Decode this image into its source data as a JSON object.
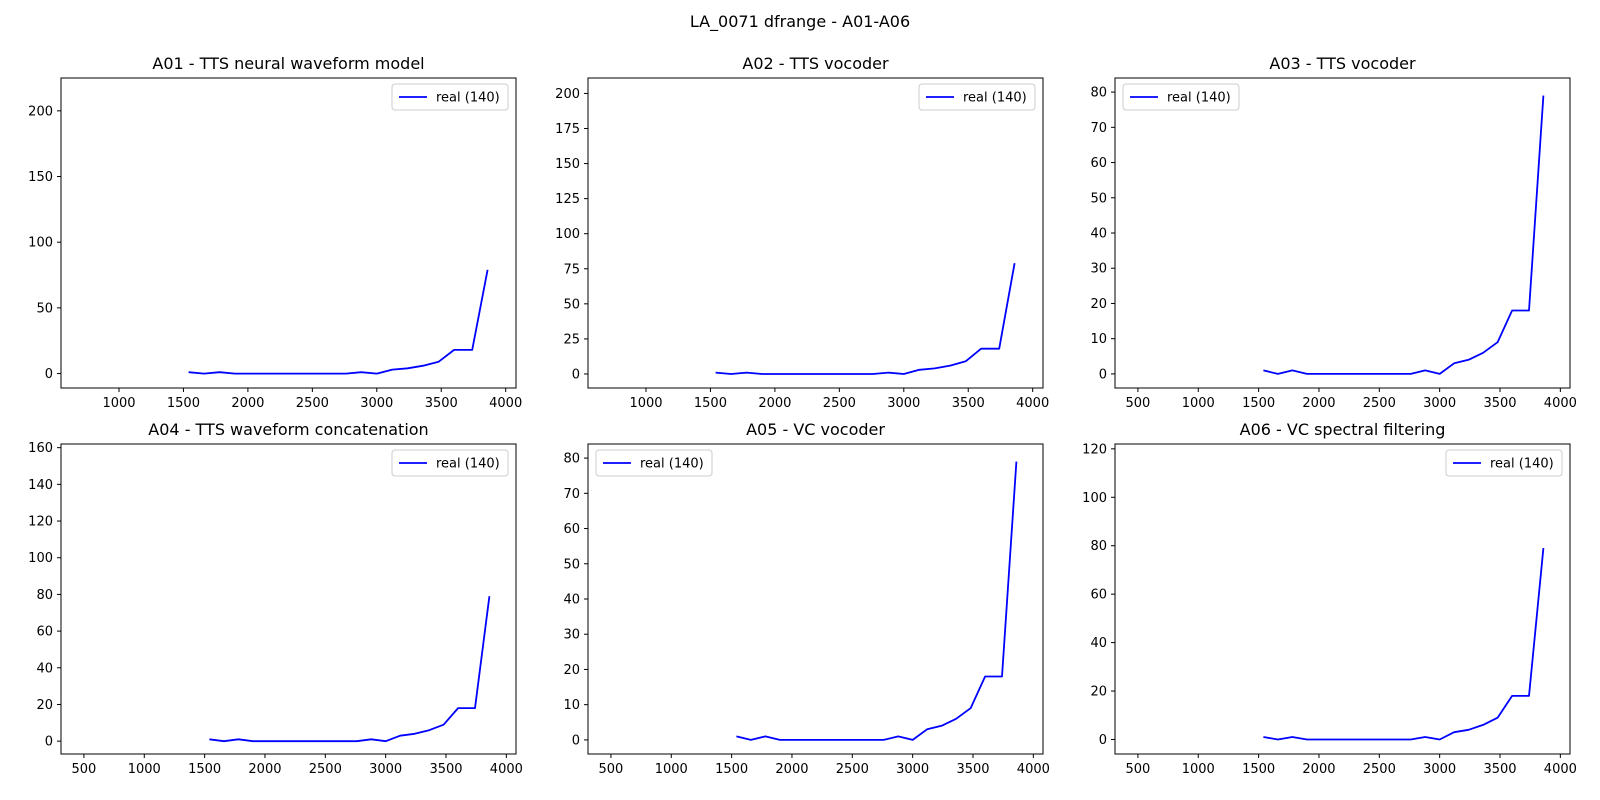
{
  "figure_title": "LA_0071 dfrange - A01-A06",
  "series_color": "#0000ff",
  "chart_data": [
    {
      "type": "line",
      "title": "A01 - TTS neural waveform model",
      "xlim": [
        550,
        4080
      ],
      "ylim": [
        -11,
        225
      ],
      "xticks": [
        1000,
        1500,
        2000,
        2500,
        3000,
        3500,
        4000
      ],
      "yticks": [
        0,
        50,
        100,
        150,
        200
      ],
      "legend": {
        "position": "top-right",
        "label": "real (140)"
      },
      "series": [
        {
          "name": "real (140)",
          "x": [
            1540,
            1660,
            1780,
            1900,
            2020,
            2140,
            2260,
            2380,
            2500,
            2620,
            2760,
            2880,
            3000,
            3120,
            3240,
            3360,
            3480,
            3600,
            3740,
            3860
          ],
          "y": [
            1,
            0,
            1,
            0,
            0,
            0,
            0,
            0,
            0,
            0,
            0,
            1,
            0,
            3,
            4,
            6,
            9,
            18,
            18,
            79
          ]
        }
      ]
    },
    {
      "type": "line",
      "title": "A02 - TTS vocoder",
      "xlim": [
        550,
        4080
      ],
      "ylim": [
        -10,
        211
      ],
      "xticks": [
        1000,
        1500,
        2000,
        2500,
        3000,
        3500,
        4000
      ],
      "yticks": [
        0,
        25,
        50,
        75,
        100,
        125,
        150,
        175,
        200
      ],
      "legend": {
        "position": "top-right",
        "label": "real (140)"
      },
      "series": [
        {
          "name": "real (140)",
          "x": [
            1540,
            1660,
            1780,
            1900,
            2020,
            2140,
            2260,
            2380,
            2500,
            2620,
            2760,
            2880,
            3000,
            3120,
            3240,
            3360,
            3480,
            3600,
            3740,
            3860
          ],
          "y": [
            1,
            0,
            1,
            0,
            0,
            0,
            0,
            0,
            0,
            0,
            0,
            1,
            0,
            3,
            4,
            6,
            9,
            18,
            18,
            79
          ]
        }
      ]
    },
    {
      "type": "line",
      "title": "A03 - TTS vocoder",
      "xlim": [
        310,
        4080
      ],
      "ylim": [
        -4,
        84
      ],
      "xticks": [
        500,
        1000,
        1500,
        2000,
        2500,
        3000,
        3500,
        4000
      ],
      "yticks": [
        0,
        10,
        20,
        30,
        40,
        50,
        60,
        70,
        80
      ],
      "legend": {
        "position": "top-left",
        "label": "real (140)"
      },
      "series": [
        {
          "name": "real (140)",
          "x": [
            1540,
            1660,
            1780,
            1900,
            2020,
            2140,
            2260,
            2380,
            2500,
            2620,
            2760,
            2880,
            3000,
            3120,
            3240,
            3360,
            3480,
            3600,
            3740,
            3860
          ],
          "y": [
            1,
            0,
            1,
            0,
            0,
            0,
            0,
            0,
            0,
            0,
            0,
            1,
            0,
            3,
            4,
            6,
            9,
            18,
            18,
            79
          ]
        }
      ]
    },
    {
      "type": "line",
      "title": "A04 - TTS waveform concatenation",
      "xlim": [
        310,
        4080
      ],
      "ylim": [
        -7,
        162
      ],
      "xticks": [
        500,
        1000,
        1500,
        2000,
        2500,
        3000,
        3500,
        4000
      ],
      "yticks": [
        0,
        20,
        40,
        60,
        80,
        100,
        120,
        140,
        160
      ],
      "legend": {
        "position": "top-right",
        "label": "real (140)"
      },
      "series": [
        {
          "name": "real (140)",
          "x": [
            1540,
            1660,
            1780,
            1900,
            2020,
            2140,
            2260,
            2380,
            2500,
            2620,
            2760,
            2880,
            3000,
            3120,
            3240,
            3360,
            3480,
            3600,
            3740,
            3860
          ],
          "y": [
            1,
            0,
            1,
            0,
            0,
            0,
            0,
            0,
            0,
            0,
            0,
            1,
            0,
            3,
            4,
            6,
            9,
            18,
            18,
            79
          ]
        }
      ]
    },
    {
      "type": "line",
      "title": "A05 - VC vocoder",
      "xlim": [
        310,
        4080
      ],
      "ylim": [
        -4,
        84
      ],
      "xticks": [
        500,
        1000,
        1500,
        2000,
        2500,
        3000,
        3500,
        4000
      ],
      "yticks": [
        0,
        10,
        20,
        30,
        40,
        50,
        60,
        70,
        80
      ],
      "legend": {
        "position": "top-left",
        "label": "real (140)"
      },
      "series": [
        {
          "name": "real (140)",
          "x": [
            1540,
            1660,
            1780,
            1900,
            2020,
            2140,
            2260,
            2380,
            2500,
            2620,
            2760,
            2880,
            3000,
            3120,
            3240,
            3360,
            3480,
            3600,
            3740,
            3860
          ],
          "y": [
            1,
            0,
            1,
            0,
            0,
            0,
            0,
            0,
            0,
            0,
            0,
            1,
            0,
            3,
            4,
            6,
            9,
            18,
            18,
            79
          ]
        }
      ]
    },
    {
      "type": "line",
      "title": "A06 - VC spectral filtering",
      "xlim": [
        310,
        4080
      ],
      "ylim": [
        -6,
        122
      ],
      "xticks": [
        500,
        1000,
        1500,
        2000,
        2500,
        3000,
        3500,
        4000
      ],
      "yticks": [
        0,
        20,
        40,
        60,
        80,
        100,
        120
      ],
      "legend": {
        "position": "top-right",
        "label": "real (140)"
      },
      "series": [
        {
          "name": "real (140)",
          "x": [
            1540,
            1660,
            1780,
            1900,
            2020,
            2140,
            2260,
            2380,
            2500,
            2620,
            2760,
            2880,
            3000,
            3120,
            3240,
            3360,
            3480,
            3600,
            3740,
            3860
          ],
          "y": [
            1,
            0,
            1,
            0,
            0,
            0,
            0,
            0,
            0,
            0,
            0,
            1,
            0,
            3,
            4,
            6,
            9,
            18,
            18,
            79
          ]
        }
      ]
    }
  ]
}
